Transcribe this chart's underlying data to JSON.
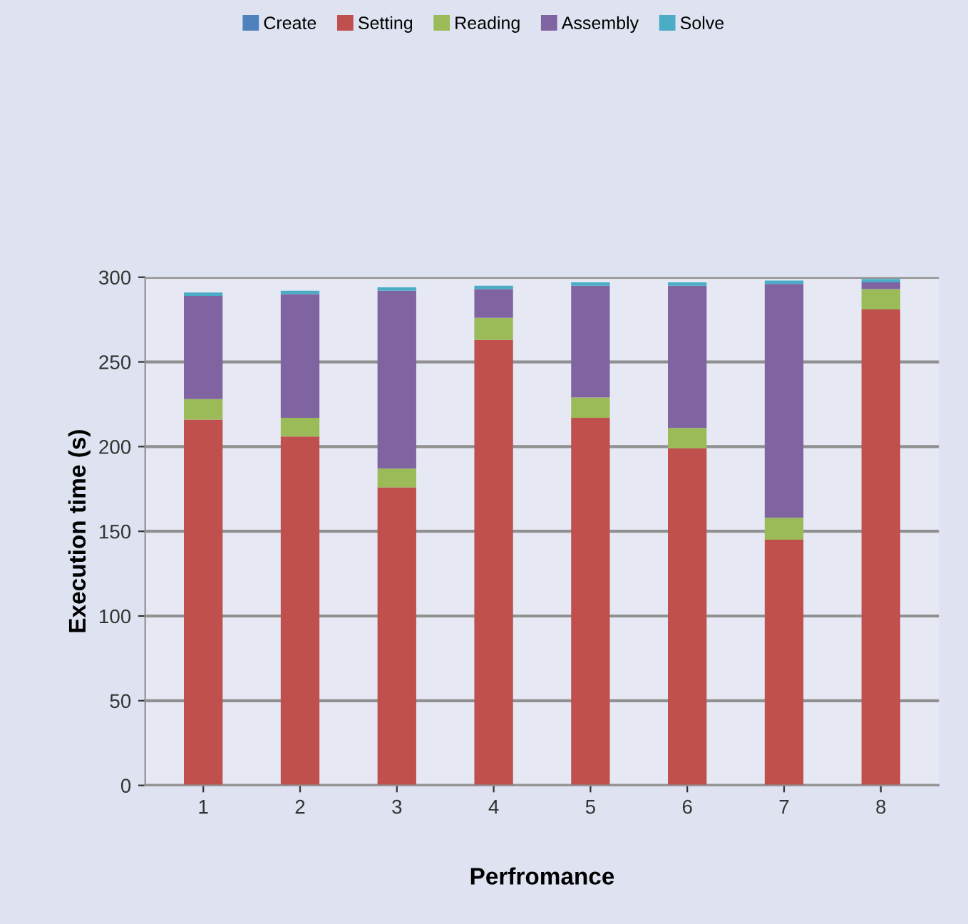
{
  "chart_data": {
    "type": "bar",
    "stacked": true,
    "xlabel": "Perfromance",
    "ylabel": "Execution time (s)",
    "categories": [
      "1",
      "2",
      "3",
      "4",
      "5",
      "6",
      "7",
      "8"
    ],
    "series": [
      {
        "name": "Create",
        "color": "#4f81bd",
        "values": [
          0,
          0,
          0,
          0,
          0,
          0,
          0,
          0
        ]
      },
      {
        "name": "Setting",
        "color": "#c0504d",
        "values": [
          216,
          206,
          176,
          263,
          217,
          199,
          145,
          281
        ]
      },
      {
        "name": "Reading",
        "color": "#9bbb59",
        "values": [
          12,
          11,
          11,
          13,
          12,
          12,
          13,
          12
        ]
      },
      {
        "name": "Assembly",
        "color": "#8064a2",
        "values": [
          61,
          73,
          105,
          17,
          66,
          84,
          138,
          4
        ]
      },
      {
        "name": "Solve",
        "color": "#4bacc6",
        "values": [
          2,
          2,
          2,
          2,
          2,
          2,
          2,
          2
        ]
      }
    ],
    "ylim": [
      0,
      300
    ],
    "yticks": [
      0,
      50,
      100,
      150,
      200,
      250,
      300
    ],
    "grid": "y",
    "legend": "top"
  }
}
